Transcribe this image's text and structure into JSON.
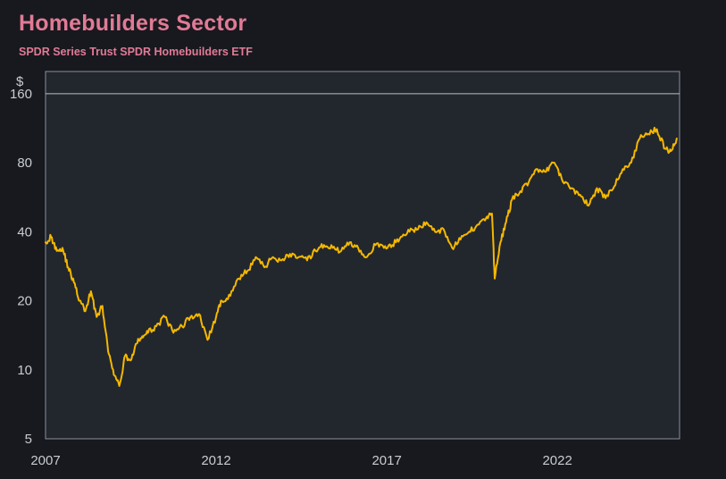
{
  "title": "Homebuilders Sector",
  "subtitle": "SPDR Series Trust SPDR Homebuilders ETF",
  "colors": {
    "background": "#17191e",
    "plot_background": "#22272e",
    "title": "#e27a96",
    "line": "#f5b800",
    "axis_text": "#c9ccd3",
    "frame": "#8a8f99"
  },
  "chart_data": {
    "type": "line",
    "title": "Homebuilders Sector",
    "subtitle": "SPDR Series Trust SPDR Homebuilders ETF",
    "ylabel": "$",
    "y_scale": "log",
    "ylim": [
      5,
      200
    ],
    "xlim": [
      "2007-01-01",
      "2025-08-01"
    ],
    "y_ticks": [
      5,
      10,
      20,
      40,
      80,
      160
    ],
    "x_ticks": [
      "2007",
      "2012",
      "2017",
      "2022"
    ],
    "grid": false,
    "series": [
      {
        "x": [
          "2007-01",
          "2007-03",
          "2007-05",
          "2007-07",
          "2007-09",
          "2007-11",
          "2008-01",
          "2008-03",
          "2008-05",
          "2008-07",
          "2008-09",
          "2008-11",
          "2009-01",
          "2009-03",
          "2009-05",
          "2009-07",
          "2009-09",
          "2009-11",
          "2010-01",
          "2010-04",
          "2010-07",
          "2010-10",
          "2011-01",
          "2011-04",
          "2011-07",
          "2011-10",
          "2012-01",
          "2012-03",
          "2012-06",
          "2012-09",
          "2012-12",
          "2013-03",
          "2013-06",
          "2013-09",
          "2013-12",
          "2014-03",
          "2014-06",
          "2014-09",
          "2014-12",
          "2015-03",
          "2015-06",
          "2015-09",
          "2015-12",
          "2016-03",
          "2016-06",
          "2016-09",
          "2016-12",
          "2017-03",
          "2017-06",
          "2017-09",
          "2017-12",
          "2018-03",
          "2018-06",
          "2018-09",
          "2018-12",
          "2019-03",
          "2019-06",
          "2019-09",
          "2019-12",
          "2020-02",
          "2020-03",
          "2020-05",
          "2020-07",
          "2020-09",
          "2020-12",
          "2021-03",
          "2021-06",
          "2021-09",
          "2021-12",
          "2022-03",
          "2022-06",
          "2022-09",
          "2022-12",
          "2023-03",
          "2023-06",
          "2023-09",
          "2023-12",
          "2024-03",
          "2024-06",
          "2024-09",
          "2024-12",
          "2025-03",
          "2025-05",
          "2025-07"
        ],
        "y": [
          36,
          38,
          33,
          34,
          28,
          24,
          20,
          18,
          22,
          17,
          19,
          12,
          9.5,
          8.5,
          11.5,
          11,
          13,
          14,
          14.5,
          15.5,
          17,
          14.5,
          15.5,
          17,
          17.5,
          13.5,
          17,
          20,
          21,
          25,
          27,
          31,
          28,
          31,
          30,
          32,
          31,
          30,
          33,
          35,
          34,
          33,
          36,
          34,
          31,
          35,
          34,
          35,
          38,
          40,
          41,
          44,
          40,
          41,
          34,
          37,
          40,
          43,
          46,
          48,
          25,
          36,
          44,
          55,
          60,
          66,
          75,
          73,
          80,
          66,
          62,
          58,
          52,
          62,
          56,
          63,
          75,
          80,
          102,
          107,
          112,
          92,
          90,
          102
        ]
      }
    ]
  }
}
